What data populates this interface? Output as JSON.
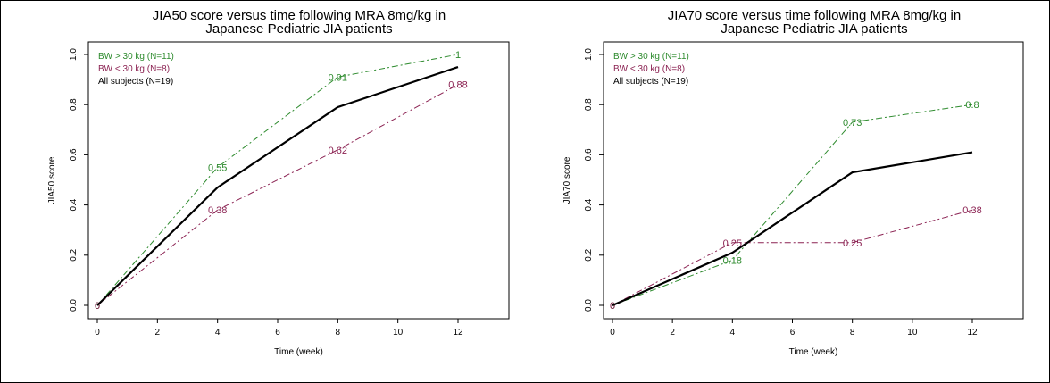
{
  "colors": {
    "heavy": "#2e8b2e",
    "light": "#8b2252",
    "all": "#000000"
  },
  "chart_data": [
    {
      "type": "line",
      "title": "JIA50 score versus time following MRA 8mg/kg in",
      "subtitle": "Japanese Pediatric JIA patients",
      "xlabel": "Time (week)",
      "ylabel": "JIA50 score",
      "xlim": [
        0,
        12
      ],
      "ylim": [
        0,
        1
      ],
      "x_ticks": [
        0,
        2,
        4,
        6,
        8,
        10,
        12
      ],
      "y_ticks": [
        0.0,
        0.2,
        0.4,
        0.6,
        0.8,
        1.0
      ],
      "x_tick_labels": [
        "0",
        "2",
        "4",
        "6",
        "8",
        "10",
        "12"
      ],
      "y_tick_labels": [
        "0.0",
        "0.2",
        "0.4",
        "0.6",
        "0.8",
        "1.0"
      ],
      "legend": "top-left",
      "grid": false,
      "x": [
        0,
        4,
        8,
        12
      ],
      "series": [
        {
          "name": "BW > 30 kg (N=11)",
          "color_key": "heavy",
          "style": "dashdot",
          "values": [
            0,
            0.55,
            0.91,
            1
          ],
          "labels": [
            "0",
            "0.55",
            "0.91",
            "1"
          ]
        },
        {
          "name": "BW < 30 kg (N=8)",
          "color_key": "light",
          "style": "dashdot",
          "values": [
            0,
            0.38,
            0.62,
            0.88
          ],
          "labels": [
            "0",
            "0.38",
            "0.62",
            "0.88"
          ]
        },
        {
          "name": "All subjects (N=19)",
          "color_key": "all",
          "style": "solid",
          "values": [
            0,
            0.47,
            0.79,
            0.95
          ],
          "labels": []
        }
      ]
    },
    {
      "type": "line",
      "title": "JIA70 score versus time following MRA 8mg/kg in",
      "subtitle": "Japanese Pediatric JIA patients",
      "xlabel": "Time (week)",
      "ylabel": "JIA70 score",
      "xlim": [
        0,
        12
      ],
      "ylim": [
        0,
        1
      ],
      "x_ticks": [
        0,
        2,
        4,
        6,
        8,
        10,
        12
      ],
      "y_ticks": [
        0.0,
        0.2,
        0.4,
        0.6,
        0.8,
        1.0
      ],
      "x_tick_labels": [
        "0",
        "2",
        "4",
        "6",
        "8",
        "10",
        "12"
      ],
      "y_tick_labels": [
        "0.0",
        "0.2",
        "0.4",
        "0.6",
        "0.8",
        "1.0"
      ],
      "legend": "top-left",
      "grid": false,
      "x": [
        0,
        4,
        8,
        12
      ],
      "series": [
        {
          "name": "BW > 30 kg (N=11)",
          "color_key": "heavy",
          "style": "dashdot",
          "values": [
            0,
            0.18,
            0.73,
            0.8
          ],
          "labels": [
            "0",
            "0.18",
            "0.73",
            "0.8"
          ]
        },
        {
          "name": "BW < 30 kg (N=8)",
          "color_key": "light",
          "style": "dashdot",
          "values": [
            0,
            0.25,
            0.25,
            0.38
          ],
          "labels": [
            "0",
            "0.25",
            "0.25",
            "0.38"
          ]
        },
        {
          "name": "All subjects (N=19)",
          "color_key": "all",
          "style": "solid",
          "values": [
            0,
            0.21,
            0.53,
            0.61
          ],
          "labels": []
        }
      ]
    }
  ]
}
